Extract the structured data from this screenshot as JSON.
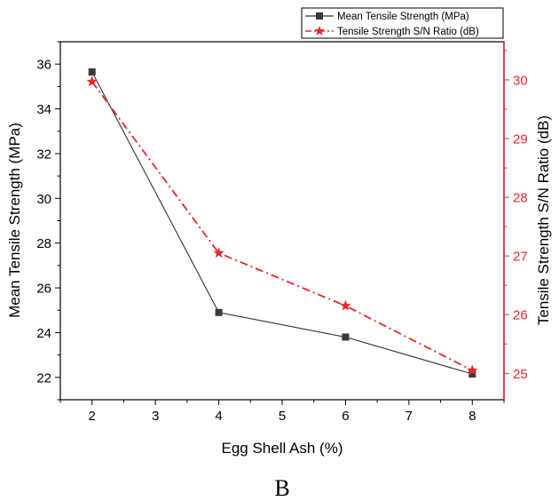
{
  "panel_label": "B",
  "colors": {
    "left_axis": "#000000",
    "left_series": "#333333",
    "left_marker": "#3a3a3a",
    "right_axis": "#e8262b",
    "right_series": "#e8262b"
  },
  "chart_data": {
    "type": "line",
    "xlabel": "Egg Shell Ash (%)",
    "ylabel": "Mean Tensile Strength (MPa)",
    "y2label": "Tensile Strength S/N Ratio (dB)",
    "xlim": [
      1.5,
      8.5
    ],
    "ylim": [
      21,
      37
    ],
    "y2lim": [
      24.55,
      30.65
    ],
    "x_ticks": [
      2,
      3,
      4,
      5,
      6,
      7,
      8
    ],
    "y_ticks": [
      22,
      24,
      26,
      28,
      30,
      32,
      34,
      36
    ],
    "y2_ticks": [
      25,
      26,
      27,
      28,
      29,
      30
    ],
    "grid": false,
    "legend_position": "top-right",
    "series": [
      {
        "name": "Mean Tensile Strength (MPa)",
        "axis": "left",
        "marker": "square",
        "line_style": "solid",
        "x": [
          2,
          4,
          6,
          8
        ],
        "y": [
          35.65,
          24.9,
          23.8,
          22.15
        ]
      },
      {
        "name": "Tensile Strength S/N Ratio (dB)",
        "axis": "right",
        "marker": "star",
        "line_style": "dash-dot",
        "x": [
          2,
          4,
          6,
          8
        ],
        "y": [
          29.97,
          27.05,
          26.15,
          25.05
        ]
      }
    ]
  }
}
